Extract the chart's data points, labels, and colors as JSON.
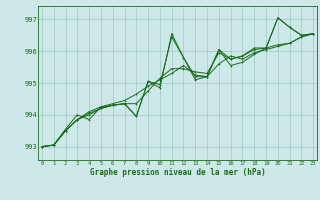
{
  "xlabel": "Graphe pression niveau de la mer (hPa)",
  "bg_color": "#cce8e8",
  "grid_color": "#aacccc",
  "line_color": "#1a6b1a",
  "spine_color": "#1a6b1a",
  "xlim": [
    -0.3,
    23.3
  ],
  "ylim": [
    992.58,
    997.42
  ],
  "yticks": [
    993,
    994,
    995,
    996,
    997
  ],
  "xticks": [
    0,
    1,
    2,
    3,
    4,
    5,
    6,
    7,
    8,
    9,
    10,
    11,
    12,
    13,
    14,
    15,
    16,
    17,
    18,
    19,
    20,
    21,
    22,
    23
  ],
  "series1_x": [
    0,
    1,
    2,
    3,
    4,
    5,
    6,
    7,
    8,
    9,
    10,
    11,
    12,
    13,
    14,
    15,
    16,
    17,
    18,
    19,
    20,
    21,
    22,
    23
  ],
  "series1_y": [
    993.0,
    993.05,
    993.55,
    994.0,
    993.85,
    994.25,
    994.3,
    994.35,
    993.95,
    995.05,
    994.85,
    996.55,
    995.8,
    995.1,
    995.2,
    996.05,
    995.55,
    995.65,
    995.9,
    996.1,
    997.05,
    996.75,
    996.5,
    996.55
  ],
  "series2_x": [
    0,
    1,
    2,
    3,
    4,
    5,
    6,
    7,
    8,
    9,
    10,
    11,
    12,
    13,
    14,
    15,
    16,
    17,
    18,
    19,
    20,
    21,
    22,
    23
  ],
  "series2_y": [
    993.0,
    993.05,
    993.5,
    993.85,
    994.05,
    994.2,
    994.3,
    994.35,
    994.35,
    994.75,
    995.15,
    995.45,
    995.45,
    995.35,
    995.3,
    995.95,
    995.75,
    995.85,
    996.05,
    996.1,
    996.2,
    996.25,
    996.45,
    996.55
  ],
  "series3_x": [
    0,
    1,
    2,
    3,
    4,
    5,
    6,
    7,
    8,
    9,
    10,
    11,
    12,
    13,
    14,
    15,
    16,
    17,
    18,
    19,
    20,
    21,
    22,
    23
  ],
  "series3_y": [
    993.0,
    993.05,
    993.5,
    993.85,
    994.1,
    994.25,
    994.35,
    994.45,
    994.65,
    994.9,
    995.1,
    995.3,
    995.55,
    995.25,
    995.2,
    995.6,
    995.85,
    995.75,
    995.95,
    996.05,
    996.15,
    996.25,
    996.45,
    996.55
  ],
  "series4_x": [
    0,
    1,
    2,
    3,
    4,
    5,
    6,
    7,
    8,
    9,
    10,
    11,
    12,
    13,
    14,
    15,
    16,
    17,
    18,
    19,
    20,
    21,
    22,
    23
  ],
  "series4_y": [
    993.0,
    993.05,
    993.5,
    993.85,
    994.0,
    994.2,
    994.3,
    994.35,
    993.95,
    995.05,
    994.95,
    996.45,
    995.8,
    995.2,
    995.2,
    996.05,
    995.75,
    995.85,
    996.1,
    996.1,
    997.05,
    996.75,
    996.5,
    996.55
  ]
}
